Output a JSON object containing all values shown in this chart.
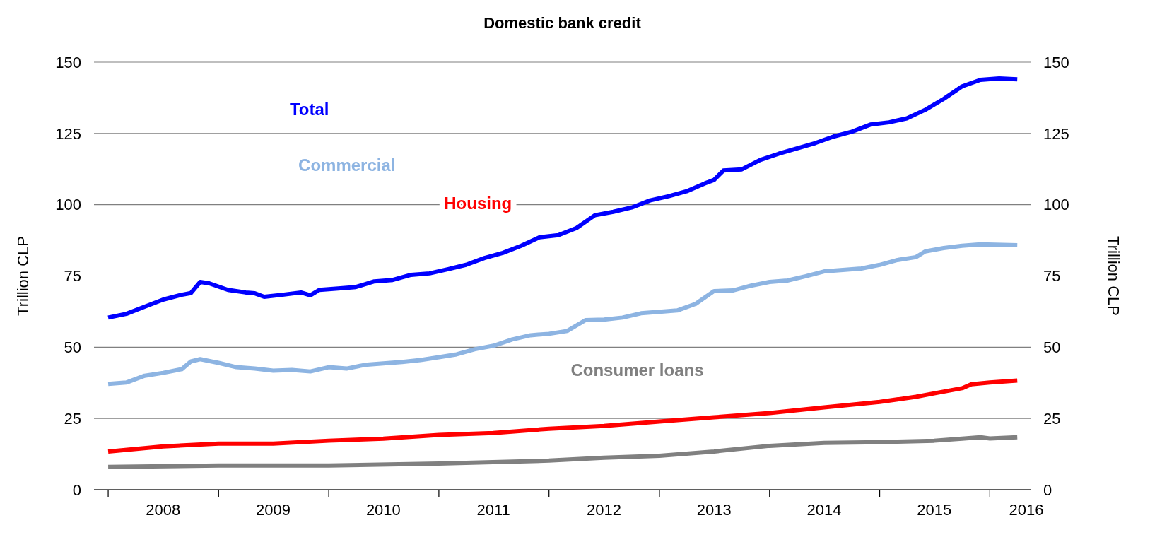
{
  "chart_data": {
    "type": "line",
    "title": "Domestic bank credit",
    "ylabel": "Trillion CLP",
    "y2label": "Trillion CLP",
    "xlim": [
      "2007-11-15",
      "2016-05-15"
    ],
    "ylim": [
      0,
      150
    ],
    "yticks": [
      0,
      25,
      50,
      75,
      100,
      125,
      150
    ],
    "y2lim": [
      0,
      150
    ],
    "y2ticks": [
      0,
      25,
      50,
      75,
      100,
      125,
      150
    ],
    "xticks": [
      {
        "value": "2008-01",
        "label": null
      },
      {
        "value": "2008-07",
        "label": "2008"
      },
      {
        "value": "2009-01",
        "label": null
      },
      {
        "value": "2009-07",
        "label": "2009"
      },
      {
        "value": "2010-01",
        "label": null
      },
      {
        "value": "2010-07",
        "label": "2010"
      },
      {
        "value": "2011-01",
        "label": null
      },
      {
        "value": "2011-07",
        "label": "2011"
      },
      {
        "value": "2012-01",
        "label": null
      },
      {
        "value": "2012-07",
        "label": "2012"
      },
      {
        "value": "2013-01",
        "label": null
      },
      {
        "value": "2013-07",
        "label": "2013"
      },
      {
        "value": "2014-01",
        "label": null
      },
      {
        "value": "2014-07",
        "label": "2014"
      },
      {
        "value": "2015-01",
        "label": null
      },
      {
        "value": "2015-07",
        "label": "2015"
      },
      {
        "value": "2016-01",
        "label": null
      },
      {
        "value": "2016-05",
        "label": "2016"
      }
    ],
    "grid": "y",
    "line_style": "solid",
    "series": [
      {
        "name": "Total",
        "color": "#0000ff",
        "x": [
          "2008-01",
          "2008-03",
          "2008-05",
          "2008-07",
          "2008-09",
          "2008-10",
          "2008-11",
          "2008-12",
          "2009-02",
          "2009-04",
          "2009-05",
          "2009-06",
          "2009-08",
          "2009-10",
          "2009-11",
          "2009-12",
          "2010-02",
          "2010-04",
          "2010-06",
          "2010-08",
          "2010-10",
          "2010-12",
          "2011-02",
          "2011-04",
          "2011-06",
          "2011-08",
          "2011-10",
          "2011-12",
          "2012-02",
          "2012-04",
          "2012-06",
          "2012-08",
          "2012-10",
          "2012-12",
          "2013-02",
          "2013-04",
          "2013-06",
          "2013-07",
          "2013-08",
          "2013-10",
          "2013-12",
          "2014-02",
          "2014-04",
          "2014-06",
          "2014-08",
          "2014-10",
          "2014-12",
          "2015-02",
          "2015-04",
          "2015-06",
          "2015-08",
          "2015-10",
          "2015-12",
          "2016-02",
          "2016-04"
        ],
        "values": [
          60.4,
          61.7,
          64.2,
          66.7,
          68.4,
          69,
          72.9,
          72.4,
          70.1,
          69.2,
          68.9,
          67.7,
          68.4,
          69.2,
          68.2,
          70.1,
          70.6,
          71.1,
          73.1,
          73.6,
          75.4,
          75.9,
          77.4,
          78.9,
          81.3,
          83.1,
          85.6,
          88.6,
          89.3,
          91.8,
          96.3,
          97.5,
          99,
          101.5,
          103,
          104.7,
          107.5,
          108.7,
          112,
          112.4,
          115.7,
          117.9,
          119.7,
          121.6,
          123.9,
          125.6,
          128.1,
          128.9,
          130.3,
          133.3,
          137.1,
          141.5,
          143.8,
          144.3,
          144
        ]
      },
      {
        "name": "Commercial",
        "color": "#8db4e2",
        "x": [
          "2008-01",
          "2008-03",
          "2008-05",
          "2008-07",
          "2008-09",
          "2008-10",
          "2008-11",
          "2009-01",
          "2009-03",
          "2009-05",
          "2009-07",
          "2009-09",
          "2009-11",
          "2010-01",
          "2010-03",
          "2010-05",
          "2010-07",
          "2010-09",
          "2010-11",
          "2011-01",
          "2011-03",
          "2011-05",
          "2011-07",
          "2011-09",
          "2011-11",
          "2012-01",
          "2012-03",
          "2012-05",
          "2012-07",
          "2012-09",
          "2012-11",
          "2013-01",
          "2013-03",
          "2013-05",
          "2013-07",
          "2013-09",
          "2013-11",
          "2014-01",
          "2014-03",
          "2014-05",
          "2014-07",
          "2014-09",
          "2014-11",
          "2015-01",
          "2015-03",
          "2015-05",
          "2015-06",
          "2015-08",
          "2015-10",
          "2015-12",
          "2016-04"
        ],
        "values": [
          37.1,
          37.6,
          40,
          41,
          42.3,
          45,
          45.8,
          44.5,
          43,
          42.5,
          41.8,
          42,
          41.5,
          43,
          42.5,
          43.8,
          44.3,
          44.8,
          45.5,
          46.5,
          47.5,
          49.3,
          50.5,
          52.7,
          54.2,
          54.7,
          55.7,
          59.5,
          59.7,
          60.4,
          61.9,
          62.4,
          62.9,
          65.2,
          69.7,
          69.9,
          71.6,
          72.9,
          73.4,
          74.9,
          76.6,
          77.1,
          77.6,
          78.9,
          80.6,
          81.6,
          83.6,
          84.8,
          85.6,
          86.1,
          85.8
        ]
      },
      {
        "name": "Housing",
        "color": "#ff0000",
        "x": [
          "2008-01",
          "2008-07",
          "2009-01",
          "2009-07",
          "2010-01",
          "2010-07",
          "2011-01",
          "2011-07",
          "2012-01",
          "2012-07",
          "2013-01",
          "2013-07",
          "2014-01",
          "2014-07",
          "2015-01",
          "2015-05",
          "2015-07",
          "2015-10",
          "2015-11",
          "2016-01",
          "2016-04"
        ],
        "values": [
          13.4,
          15.2,
          16.2,
          16.2,
          17.2,
          17.9,
          19.2,
          19.9,
          21.4,
          22.4,
          23.9,
          25.4,
          26.9,
          28.9,
          30.8,
          32.6,
          33.8,
          35.6,
          37,
          37.6,
          38.3
        ]
      },
      {
        "name": "Consumer loans",
        "color": "#808080",
        "x": [
          "2008-01",
          "2009-01",
          "2010-01",
          "2011-01",
          "2012-01",
          "2012-07",
          "2013-01",
          "2013-07",
          "2014-01",
          "2014-07",
          "2015-01",
          "2015-07",
          "2015-10",
          "2015-12",
          "2016-01",
          "2016-04"
        ],
        "values": [
          8,
          8.5,
          8.5,
          9.2,
          10.2,
          11.2,
          11.9,
          13.4,
          15.4,
          16.4,
          16.7,
          17.2,
          17.9,
          18.4,
          18,
          18.4
        ]
      }
    ]
  }
}
